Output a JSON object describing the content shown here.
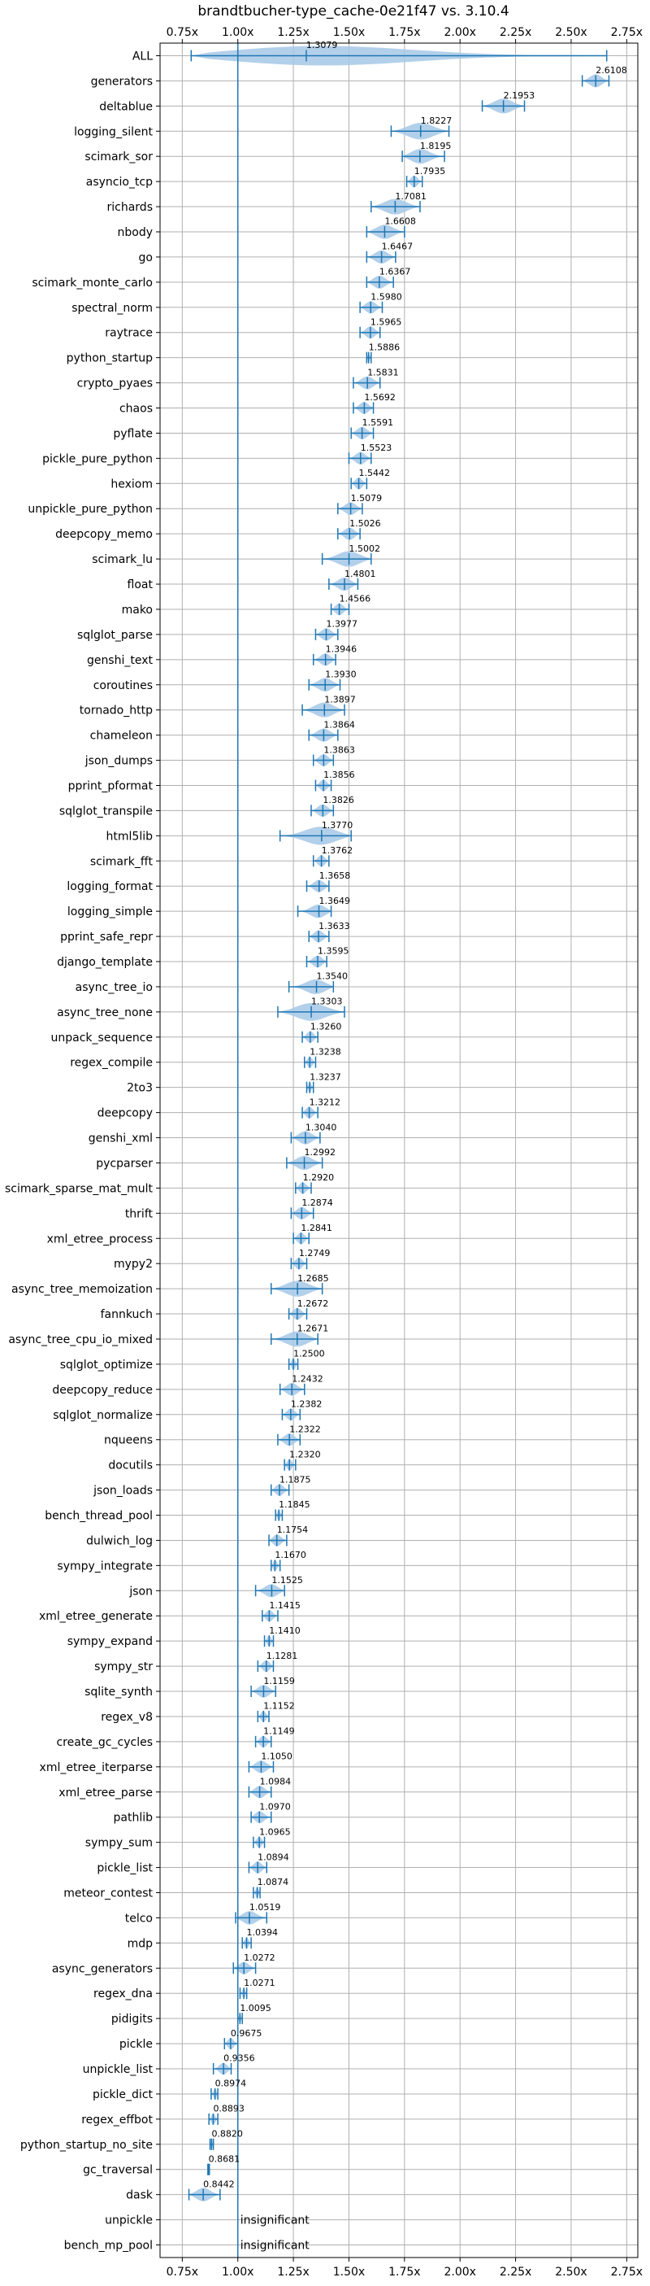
{
  "chart_data": {
    "type": "violin",
    "title": "brandtbucher-type_cache-0e21f47 vs. 3.10.4",
    "xlim": [
      0.65,
      2.8
    ],
    "x_ticks": [
      0.75,
      1.0,
      1.25,
      1.5,
      1.75,
      2.0,
      2.25,
      2.5,
      2.75
    ],
    "x_tick_labels": [
      "0.75x",
      "1.00x",
      "1.25x",
      "1.50x",
      "1.75x",
      "2.00x",
      "2.25x",
      "2.50x",
      "2.75x"
    ],
    "baseline": 1.0,
    "grid": true,
    "colors": {
      "violin": "#a6c8e6",
      "line": "#1f77b4"
    },
    "insignificant_label": "insignificant",
    "benchmarks": [
      {
        "name": "ALL",
        "value": 1.3079,
        "min": 0.79,
        "max": 2.66
      },
      {
        "name": "generators",
        "value": 2.6108,
        "min": 2.55,
        "max": 2.67
      },
      {
        "name": "deltablue",
        "value": 2.1953,
        "min": 2.1,
        "max": 2.29
      },
      {
        "name": "logging_silent",
        "value": 1.8227,
        "min": 1.69,
        "max": 1.95
      },
      {
        "name": "scimark_sor",
        "value": 1.8195,
        "min": 1.74,
        "max": 1.93
      },
      {
        "name": "asyncio_tcp",
        "value": 1.7935,
        "min": 1.76,
        "max": 1.83
      },
      {
        "name": "richards",
        "value": 1.7081,
        "min": 1.6,
        "max": 1.82
      },
      {
        "name": "nbody",
        "value": 1.6608,
        "min": 1.58,
        "max": 1.75
      },
      {
        "name": "go",
        "value": 1.6467,
        "min": 1.58,
        "max": 1.71
      },
      {
        "name": "scimark_monte_carlo",
        "value": 1.6367,
        "min": 1.58,
        "max": 1.7
      },
      {
        "name": "spectral_norm",
        "value": 1.598,
        "min": 1.55,
        "max": 1.65
      },
      {
        "name": "raytrace",
        "value": 1.5965,
        "min": 1.55,
        "max": 1.64
      },
      {
        "name": "python_startup",
        "value": 1.5886,
        "min": 1.58,
        "max": 1.6
      },
      {
        "name": "crypto_pyaes",
        "value": 1.5831,
        "min": 1.52,
        "max": 1.64
      },
      {
        "name": "chaos",
        "value": 1.5692,
        "min": 1.52,
        "max": 1.61
      },
      {
        "name": "pyflate",
        "value": 1.5591,
        "min": 1.51,
        "max": 1.61
      },
      {
        "name": "pickle_pure_python",
        "value": 1.5523,
        "min": 1.5,
        "max": 1.6
      },
      {
        "name": "hexiom",
        "value": 1.5442,
        "min": 1.51,
        "max": 1.58
      },
      {
        "name": "unpickle_pure_python",
        "value": 1.5079,
        "min": 1.45,
        "max": 1.56
      },
      {
        "name": "deepcopy_memo",
        "value": 1.5026,
        "min": 1.45,
        "max": 1.55
      },
      {
        "name": "scimark_lu",
        "value": 1.5002,
        "min": 1.38,
        "max": 1.6
      },
      {
        "name": "float",
        "value": 1.4801,
        "min": 1.41,
        "max": 1.54
      },
      {
        "name": "mako",
        "value": 1.4566,
        "min": 1.42,
        "max": 1.5
      },
      {
        "name": "sqlglot_parse",
        "value": 1.3977,
        "min": 1.35,
        "max": 1.45
      },
      {
        "name": "genshi_text",
        "value": 1.3946,
        "min": 1.34,
        "max": 1.44
      },
      {
        "name": "coroutines",
        "value": 1.393,
        "min": 1.32,
        "max": 1.46
      },
      {
        "name": "tornado_http",
        "value": 1.3897,
        "min": 1.29,
        "max": 1.48
      },
      {
        "name": "chameleon",
        "value": 1.3864,
        "min": 1.32,
        "max": 1.45
      },
      {
        "name": "json_dumps",
        "value": 1.3863,
        "min": 1.34,
        "max": 1.43
      },
      {
        "name": "pprint_pformat",
        "value": 1.3856,
        "min": 1.35,
        "max": 1.42
      },
      {
        "name": "sqlglot_transpile",
        "value": 1.3826,
        "min": 1.33,
        "max": 1.43
      },
      {
        "name": "html5lib",
        "value": 1.377,
        "min": 1.19,
        "max": 1.51
      },
      {
        "name": "scimark_fft",
        "value": 1.3762,
        "min": 1.34,
        "max": 1.41
      },
      {
        "name": "logging_format",
        "value": 1.3658,
        "min": 1.31,
        "max": 1.41
      },
      {
        "name": "logging_simple",
        "value": 1.3649,
        "min": 1.27,
        "max": 1.42
      },
      {
        "name": "pprint_safe_repr",
        "value": 1.3633,
        "min": 1.32,
        "max": 1.41
      },
      {
        "name": "django_template",
        "value": 1.3595,
        "min": 1.31,
        "max": 1.4
      },
      {
        "name": "async_tree_io",
        "value": 1.354,
        "min": 1.23,
        "max": 1.43
      },
      {
        "name": "async_tree_none",
        "value": 1.3303,
        "min": 1.18,
        "max": 1.48
      },
      {
        "name": "unpack_sequence",
        "value": 1.326,
        "min": 1.29,
        "max": 1.36
      },
      {
        "name": "regex_compile",
        "value": 1.3238,
        "min": 1.3,
        "max": 1.35
      },
      {
        "name": "2to3",
        "value": 1.3237,
        "min": 1.31,
        "max": 1.34
      },
      {
        "name": "deepcopy",
        "value": 1.3212,
        "min": 1.29,
        "max": 1.36
      },
      {
        "name": "genshi_xml",
        "value": 1.304,
        "min": 1.24,
        "max": 1.37
      },
      {
        "name": "pycparser",
        "value": 1.2992,
        "min": 1.22,
        "max": 1.38
      },
      {
        "name": "scimark_sparse_mat_mult",
        "value": 1.292,
        "min": 1.26,
        "max": 1.33
      },
      {
        "name": "thrift",
        "value": 1.2874,
        "min": 1.24,
        "max": 1.34
      },
      {
        "name": "xml_etree_process",
        "value": 1.2841,
        "min": 1.25,
        "max": 1.32
      },
      {
        "name": "mypy2",
        "value": 1.2749,
        "min": 1.24,
        "max": 1.31
      },
      {
        "name": "async_tree_memoization",
        "value": 1.2685,
        "min": 1.15,
        "max": 1.38
      },
      {
        "name": "fannkuch",
        "value": 1.2672,
        "min": 1.23,
        "max": 1.31
      },
      {
        "name": "async_tree_cpu_io_mixed",
        "value": 1.2671,
        "min": 1.15,
        "max": 1.36
      },
      {
        "name": "sqlglot_optimize",
        "value": 1.25,
        "min": 1.23,
        "max": 1.27
      },
      {
        "name": "deepcopy_reduce",
        "value": 1.2432,
        "min": 1.19,
        "max": 1.3
      },
      {
        "name": "sqlglot_normalize",
        "value": 1.2382,
        "min": 1.2,
        "max": 1.28
      },
      {
        "name": "nqueens",
        "value": 1.2322,
        "min": 1.18,
        "max": 1.28
      },
      {
        "name": "docutils",
        "value": 1.232,
        "min": 1.21,
        "max": 1.26
      },
      {
        "name": "json_loads",
        "value": 1.1875,
        "min": 1.15,
        "max": 1.23
      },
      {
        "name": "bench_thread_pool",
        "value": 1.1845,
        "min": 1.17,
        "max": 1.2
      },
      {
        "name": "dulwich_log",
        "value": 1.1754,
        "min": 1.14,
        "max": 1.22
      },
      {
        "name": "sympy_integrate",
        "value": 1.167,
        "min": 1.15,
        "max": 1.19
      },
      {
        "name": "json",
        "value": 1.1525,
        "min": 1.08,
        "max": 1.21
      },
      {
        "name": "xml_etree_generate",
        "value": 1.1415,
        "min": 1.11,
        "max": 1.18
      },
      {
        "name": "sympy_expand",
        "value": 1.141,
        "min": 1.12,
        "max": 1.16
      },
      {
        "name": "sympy_str",
        "value": 1.1281,
        "min": 1.09,
        "max": 1.16
      },
      {
        "name": "sqlite_synth",
        "value": 1.1159,
        "min": 1.06,
        "max": 1.17
      },
      {
        "name": "regex_v8",
        "value": 1.1152,
        "min": 1.09,
        "max": 1.14
      },
      {
        "name": "create_gc_cycles",
        "value": 1.1149,
        "min": 1.08,
        "max": 1.15
      },
      {
        "name": "xml_etree_iterparse",
        "value": 1.105,
        "min": 1.05,
        "max": 1.16
      },
      {
        "name": "xml_etree_parse",
        "value": 1.0984,
        "min": 1.05,
        "max": 1.15
      },
      {
        "name": "pathlib",
        "value": 1.097,
        "min": 1.06,
        "max": 1.15
      },
      {
        "name": "sympy_sum",
        "value": 1.0965,
        "min": 1.07,
        "max": 1.12
      },
      {
        "name": "pickle_list",
        "value": 1.0894,
        "min": 1.05,
        "max": 1.13
      },
      {
        "name": "meteor_contest",
        "value": 1.0874,
        "min": 1.07,
        "max": 1.1
      },
      {
        "name": "telco",
        "value": 1.0519,
        "min": 0.99,
        "max": 1.13
      },
      {
        "name": "mdp",
        "value": 1.0394,
        "min": 1.02,
        "max": 1.06
      },
      {
        "name": "async_generators",
        "value": 1.0272,
        "min": 0.98,
        "max": 1.08
      },
      {
        "name": "regex_dna",
        "value": 1.0271,
        "min": 1.01,
        "max": 1.04
      },
      {
        "name": "pidigits",
        "value": 1.0095,
        "min": 1.0,
        "max": 1.02
      },
      {
        "name": "pickle",
        "value": 0.9675,
        "min": 0.94,
        "max": 1.0
      },
      {
        "name": "unpickle_list",
        "value": 0.9356,
        "min": 0.89,
        "max": 0.97
      },
      {
        "name": "pickle_dict",
        "value": 0.8974,
        "min": 0.88,
        "max": 0.91
      },
      {
        "name": "regex_effbot",
        "value": 0.8893,
        "min": 0.87,
        "max": 0.91
      },
      {
        "name": "python_startup_no_site",
        "value": 0.882,
        "min": 0.875,
        "max": 0.89
      },
      {
        "name": "gc_traversal",
        "value": 0.8681,
        "min": 0.865,
        "max": 0.872
      },
      {
        "name": "dask",
        "value": 0.8442,
        "min": 0.78,
        "max": 0.92
      },
      {
        "name": "unpickle",
        "value": null,
        "status": "insignificant"
      },
      {
        "name": "bench_mp_pool",
        "value": null,
        "status": "insignificant"
      }
    ]
  }
}
